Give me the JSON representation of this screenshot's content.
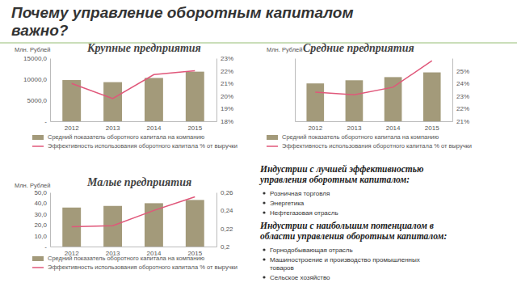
{
  "slide": {
    "title": [
      "Почему управление оборотным капиталом",
      "важно?"
    ],
    "sections": [
      {
        "heading": [
          "Индустрии с лучшей эффективностью",
          "управления оборотным капиталом:"
        ],
        "items": [
          [
            "Розничная торговля"
          ],
          [
            "Энергетика"
          ],
          [
            "Нефтегазовая отрасль"
          ]
        ]
      },
      {
        "heading": [
          "Индустрии с наибольшим потенциалом в",
          "области управления оборотным капиталом:"
        ],
        "items": [
          [
            "Горнодобывающая отрасль"
          ],
          [
            "Машиностроение и производство промышленных",
            "товаров"
          ],
          [
            "Сельское хозяйство"
          ]
        ]
      }
    ]
  },
  "chart_data": [
    {
      "type": "bar",
      "title": "Крупные предприятия",
      "y_label": "Млн. Рублей",
      "categories": [
        "2012",
        "2013",
        "2014",
        "2015"
      ],
      "ylim": [
        0,
        15000
      ],
      "yticks": [
        {
          "value": 0,
          "label": "-"
        },
        {
          "value": 5000,
          "label": "5000,0"
        },
        {
          "value": 10000,
          "label": "10000,0"
        },
        {
          "value": 15000,
          "label": "15000,0"
        }
      ],
      "y2lim": [
        18,
        23
      ],
      "y2ticks": [
        {
          "value": 18,
          "label": "18%"
        },
        {
          "value": 19,
          "label": "19%"
        },
        {
          "value": 20,
          "label": "20%"
        },
        {
          "value": 21,
          "label": "21%"
        },
        {
          "value": 22,
          "label": "22%"
        },
        {
          "value": 23,
          "label": "23%"
        }
      ],
      "series": [
        {
          "name": "Средний показатель оборотного капитала на компанию",
          "type": "bar",
          "color": "#a39a7a",
          "values": [
            9800,
            9300,
            10300,
            11800
          ]
        },
        {
          "name": "Эффективность использования оборотного капитала % от выручки",
          "type": "line",
          "color": "#e0577a",
          "axis": "y2",
          "values": [
            21.0,
            19.8,
            21.7,
            22.0
          ]
        }
      ]
    },
    {
      "type": "bar",
      "title": "Средние предприятия",
      "y_label": "Млн. Рублей",
      "categories": [
        "2012",
        "2013",
        "2014",
        "2015"
      ],
      "ylim": [
        0,
        200
      ],
      "y2lim": [
        21,
        26
      ],
      "y2ticks": [
        {
          "value": 21,
          "label": "21%"
        },
        {
          "value": 22,
          "label": "22%"
        },
        {
          "value": 23,
          "label": "23%"
        },
        {
          "value": 24,
          "label": "24%"
        },
        {
          "value": 25,
          "label": "25%"
        }
      ],
      "series": [
        {
          "name": "Средний показатель оборотного капитала на компанию",
          "type": "bar",
          "color": "#a39a7a",
          "values": [
            120,
            130,
            140,
            155
          ]
        },
        {
          "name": "Эффективность использования оборотного капитала % от выручки",
          "type": "line",
          "color": "#e0577a",
          "axis": "y2",
          "values": [
            23.3,
            23.1,
            23.7,
            25.8
          ]
        }
      ]
    },
    {
      "type": "bar",
      "title": "Малые предприятия",
      "y_label": "Млн. Рублей",
      "categories": [
        "2012",
        "2013",
        "2014",
        "2015"
      ],
      "ylim": [
        0,
        50
      ],
      "yticks": [
        {
          "value": 0,
          "label": "-"
        },
        {
          "value": 10,
          "label": "10,0"
        },
        {
          "value": 20,
          "label": "20,0"
        },
        {
          "value": 30,
          "label": "30,0"
        },
        {
          "value": 40,
          "label": "40,0"
        },
        {
          "value": 50,
          "label": "50,0"
        }
      ],
      "y2lim": [
        0.2,
        0.26
      ],
      "y2ticks": [
        {
          "value": 0.2,
          "label": "0,2"
        },
        {
          "value": 0.22,
          "label": "0,22"
        },
        {
          "value": 0.24,
          "label": "0,24"
        },
        {
          "value": 0.26,
          "label": "0,26"
        }
      ],
      "series": [
        {
          "name": "Средний показатель оборотного капитала на компанию",
          "type": "bar",
          "color": "#a39a7a",
          "values": [
            36,
            37.5,
            40,
            43
          ]
        },
        {
          "name": "Эффективность использования оборотного капитала % от выручки",
          "type": "line",
          "color": "#e0577a",
          "axis": "y2",
          "values": [
            0.222,
            0.223,
            0.24,
            0.255
          ]
        }
      ]
    }
  ]
}
